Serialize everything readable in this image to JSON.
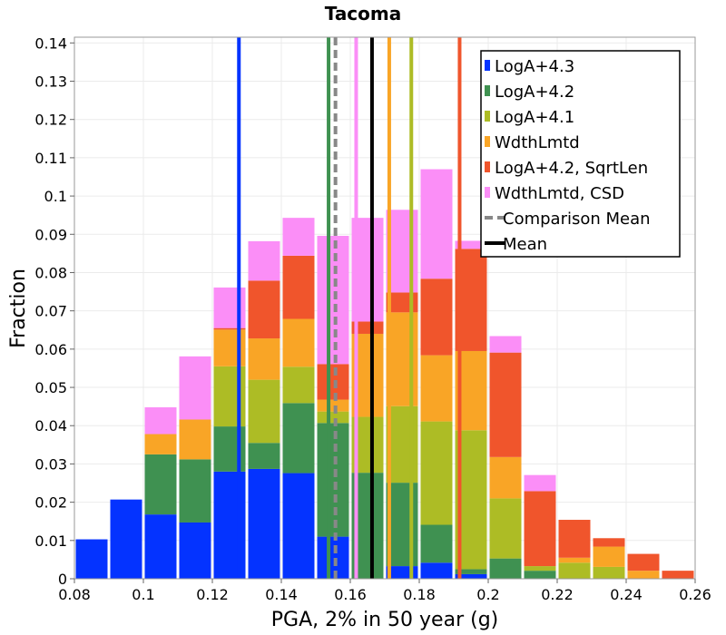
{
  "chart_data": {
    "type": "bar",
    "stacked": true,
    "title": "Tacoma",
    "xlabel": "PGA, 2% in 50 year (g)",
    "ylabel": "Fraction",
    "xlim": [
      0.08,
      0.26
    ],
    "ylim": [
      0,
      0.1415
    ],
    "xticks": [
      "0.08",
      "0.1",
      "0.12",
      "0.14",
      "0.16",
      "0.18",
      "0.2",
      "0.22",
      "0.24",
      "0.26"
    ],
    "yticks": [
      "0",
      "0.01",
      "0.02",
      "0.03",
      "0.04",
      "0.05",
      "0.06",
      "0.07",
      "0.08",
      "0.09",
      "0.1",
      "0.11",
      "0.12",
      "0.13",
      "0.14"
    ],
    "x": [
      0.085,
      0.095,
      0.105,
      0.115,
      0.125,
      0.135,
      0.145,
      0.155,
      0.165,
      0.175,
      0.185,
      0.195,
      0.205,
      0.215,
      0.225,
      0.235,
      0.245,
      0.255
    ],
    "bin_width": 0.01,
    "grid": true,
    "legend_position": "top-right",
    "series": [
      {
        "name": "LogA+4.3",
        "color": "#0433ff",
        "values": [
          0.0103,
          0.0207,
          0.0168,
          0.0147,
          0.028,
          0.0287,
          0.0276,
          0.011,
          0,
          0.0033,
          0.0042,
          0.0012,
          0,
          0,
          0,
          0,
          0,
          0
        ]
      },
      {
        "name": "LogA+4.2",
        "color": "#3f9151",
        "values": [
          0,
          0,
          0.0157,
          0.0165,
          0.0118,
          0.0068,
          0.0183,
          0.0297,
          0.0277,
          0.0218,
          0.0099,
          0.0013,
          0.0053,
          0.0021,
          0,
          0,
          0,
          0
        ]
      },
      {
        "name": "LogA+4.1",
        "color": "#adbc25",
        "values": [
          0,
          0,
          0,
          0,
          0.0157,
          0.0165,
          0.0095,
          0.003,
          0.0146,
          0.02,
          0.027,
          0.0363,
          0.0157,
          0.0012,
          0.0042,
          0.0031,
          0,
          0
        ]
      },
      {
        "name": "WdthLmtd",
        "color": "#f9a526",
        "values": [
          0,
          0,
          0.0053,
          0.0104,
          0.0096,
          0.0108,
          0.0125,
          0.0031,
          0.0217,
          0.0245,
          0.0173,
          0.0207,
          0.0108,
          0,
          0.0013,
          0.0053,
          0.0021,
          0
        ]
      },
      {
        "name": "LogA+4.2, SqrtLen",
        "color": "#f0552c",
        "values": [
          0,
          0,
          0,
          0,
          0.0004,
          0.0151,
          0.0165,
          0.0093,
          0.0032,
          0.0052,
          0.02,
          0.0267,
          0.0273,
          0.0196,
          0.0099,
          0.0022,
          0.0044,
          0.0021
        ]
      },
      {
        "name": "WdthLmtd, CSD",
        "color": "#fb8ef7",
        "values": [
          0,
          0,
          0.007,
          0.0165,
          0.0106,
          0.0103,
          0.0099,
          0.0335,
          0.0271,
          0.0216,
          0.0286,
          0.0021,
          0.0043,
          0.0042,
          0,
          0,
          0,
          0
        ]
      }
    ],
    "vertical_lines": [
      {
        "x": 0.1277,
        "color": "#0433ff",
        "style": "solid"
      },
      {
        "x": 0.1537,
        "color": "#3f9151",
        "style": "solid"
      },
      {
        "x": 0.1777,
        "color": "#adbc25",
        "style": "solid"
      },
      {
        "x": 0.1713,
        "color": "#f9a526",
        "style": "solid"
      },
      {
        "x": 0.1917,
        "color": "#f0552c",
        "style": "solid"
      },
      {
        "x": 0.1617,
        "color": "#fb8ef7",
        "style": "solid"
      },
      {
        "x": 0.1557,
        "color": "#888888",
        "style": "dashed",
        "label": "Comparison Mean"
      },
      {
        "x": 0.1663,
        "color": "#000000",
        "style": "solid",
        "label": "Mean"
      }
    ],
    "legend": [
      {
        "label": "LogA+4.3",
        "color": "#0433ff",
        "kind": "box"
      },
      {
        "label": "LogA+4.2",
        "color": "#3f9151",
        "kind": "box"
      },
      {
        "label": "LogA+4.1",
        "color": "#adbc25",
        "kind": "box"
      },
      {
        "label": "WdthLmtd",
        "color": "#f9a526",
        "kind": "box"
      },
      {
        "label": "LogA+4.2, SqrtLen",
        "color": "#f0552c",
        "kind": "box"
      },
      {
        "label": "WdthLmtd, CSD",
        "color": "#fb8ef7",
        "kind": "box"
      },
      {
        "label": "Comparison Mean",
        "color": "#888888",
        "kind": "dashed"
      },
      {
        "label": "Mean",
        "color": "#000000",
        "kind": "line"
      }
    ]
  }
}
